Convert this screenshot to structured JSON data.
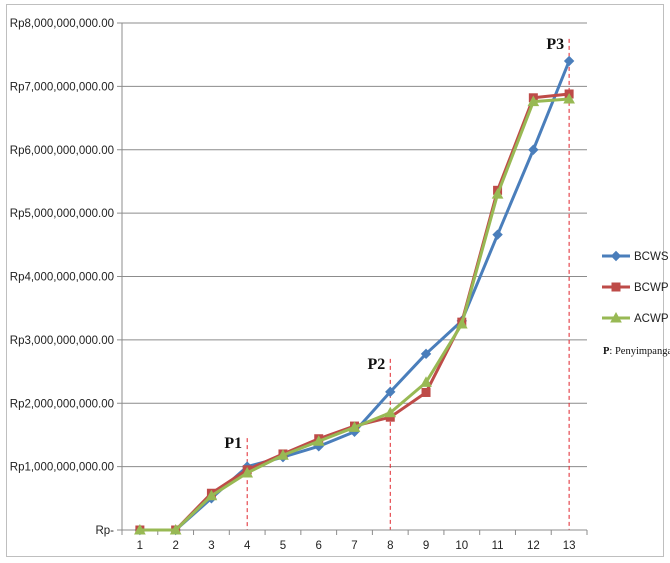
{
  "chart_data": {
    "type": "line",
    "title": "",
    "xlabel": "",
    "ylabel": "",
    "categories": [
      "1",
      "2",
      "3",
      "4",
      "5",
      "6",
      "7",
      "8",
      "9",
      "10",
      "11",
      "12",
      "13"
    ],
    "y_tick_labels": [
      "Rp-",
      "Rp1,000,000,000.00",
      "Rp2,000,000,000.00",
      "Rp3,000,000,000.00",
      "Rp4,000,000,000.00",
      "Rp5,000,000,000.00",
      "Rp6,000,000,000.00",
      "Rp7,000,000,000.00",
      "Rp8,000,000,000.00"
    ],
    "ylim": [
      0,
      8000000000
    ],
    "grid": "horizontal",
    "legend_position": "right",
    "series": [
      {
        "name": "BCWS",
        "color": "#4a7ebb",
        "marker": "diamond",
        "values": [
          0,
          0,
          500000000,
          1000000000,
          1150000000,
          1320000000,
          1550000000,
          2180000000,
          2780000000,
          3300000000,
          4660000000,
          6000000000,
          7400000000
        ]
      },
      {
        "name": "BCWP",
        "color": "#be4b48",
        "marker": "square",
        "values": [
          0,
          0,
          580000000,
          950000000,
          1200000000,
          1440000000,
          1640000000,
          1780000000,
          2170000000,
          3280000000,
          5360000000,
          6820000000,
          6880000000
        ]
      },
      {
        "name": "ACWP",
        "color": "#98b954",
        "marker": "triangle",
        "values": [
          0,
          0,
          540000000,
          900000000,
          1180000000,
          1400000000,
          1620000000,
          1850000000,
          2330000000,
          3250000000,
          5300000000,
          6760000000,
          6800000000
        ]
      }
    ],
    "annotations": [
      {
        "label": "P1",
        "x": "4",
        "line_top_value": 1450000000
      },
      {
        "label": "P2",
        "x": "8",
        "line_top_value": 2700000000
      },
      {
        "label": "P3",
        "x": "13",
        "line_top_value": 7750000000
      }
    ],
    "note": {
      "key": "P",
      "text": ": Penyimpangan"
    }
  }
}
